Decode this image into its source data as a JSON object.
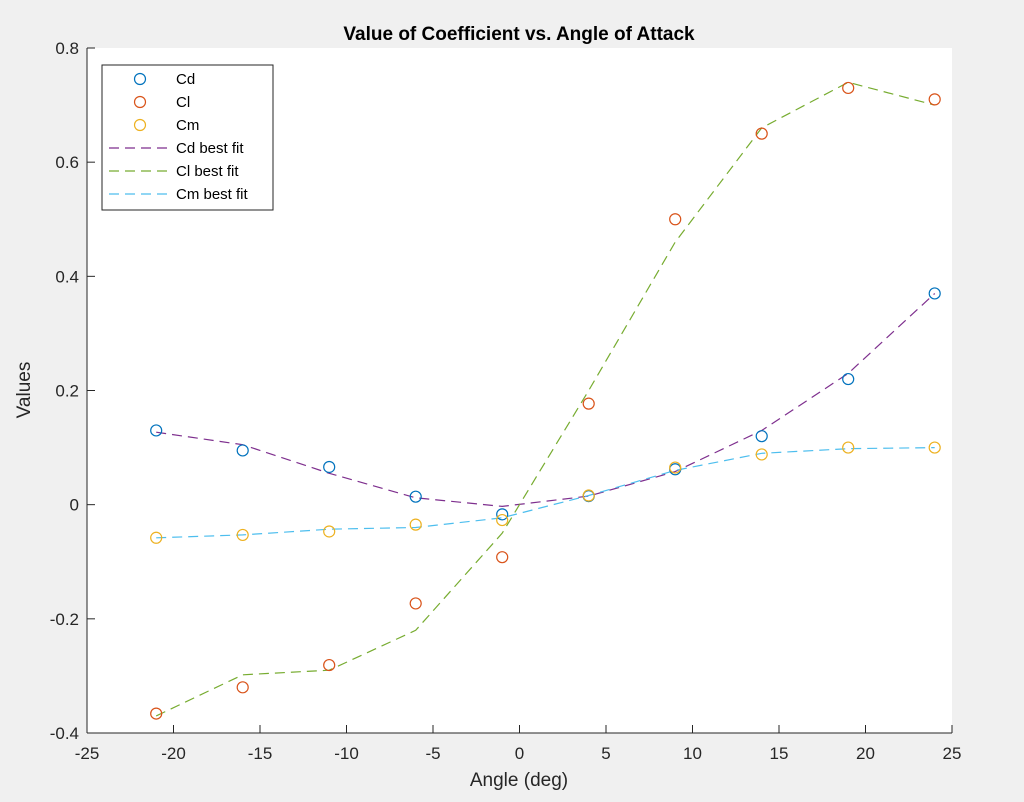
{
  "chart_data": {
    "type": "line",
    "title": "Value of Coefficient vs. Angle of Attack",
    "xlabel": "Angle (deg)",
    "ylabel": "Values",
    "xlim": [
      -25,
      25
    ],
    "ylim": [
      -0.4,
      0.8
    ],
    "xticks": [
      -25,
      -20,
      -15,
      -10,
      -5,
      0,
      5,
      10,
      15,
      20,
      25
    ],
    "yticks": [
      -0.4,
      -0.2,
      0,
      0.2,
      0.4,
      0.6,
      0.8
    ],
    "xtick_labels": [
      "-25",
      "-20",
      "-15",
      "-10",
      "-5",
      "0",
      "5",
      "10",
      "15",
      "20",
      "25"
    ],
    "ytick_labels": [
      "-0.4",
      "-0.2",
      "0",
      "0.2",
      "0.4",
      "0.6",
      "0.8"
    ],
    "grid": false,
    "legend_position": "top-left",
    "x": [
      -21,
      -16,
      -11,
      -6,
      -1,
      4,
      9,
      14,
      19,
      24
    ],
    "series": [
      {
        "name": "Cd",
        "style": "markers",
        "color": "#0072BD",
        "values": [
          0.13,
          0.095,
          0.066,
          0.014,
          -0.017,
          0.015,
          0.062,
          0.12,
          0.22,
          0.37
        ]
      },
      {
        "name": "Cl",
        "style": "markers",
        "color": "#D95319",
        "values": [
          -0.366,
          -0.32,
          -0.281,
          -0.173,
          -0.092,
          0.177,
          0.5,
          0.65,
          0.73,
          0.71
        ]
      },
      {
        "name": "Cm",
        "style": "markers",
        "color": "#EDB120",
        "values": [
          -0.058,
          -0.053,
          -0.047,
          -0.035,
          -0.027,
          0.016,
          0.065,
          0.088,
          0.1,
          0.1
        ]
      },
      {
        "name": "Cd best fit",
        "style": "dashed",
        "color": "#7E2F8E",
        "values": [
          0.127,
          0.105,
          0.055,
          0.012,
          -0.003,
          0.015,
          0.058,
          0.13,
          0.23,
          0.37
        ]
      },
      {
        "name": "Cl best fit",
        "style": "dashed",
        "color": "#77AC30",
        "values": [
          -0.37,
          -0.298,
          -0.29,
          -0.22,
          -0.05,
          0.2,
          0.46,
          0.66,
          0.74,
          0.7
        ]
      },
      {
        "name": "Cm best fit",
        "style": "dashed",
        "color": "#4DBEEE",
        "values": [
          -0.058,
          -0.053,
          -0.043,
          -0.04,
          -0.023,
          0.016,
          0.06,
          0.09,
          0.098,
          0.1
        ]
      }
    ]
  }
}
